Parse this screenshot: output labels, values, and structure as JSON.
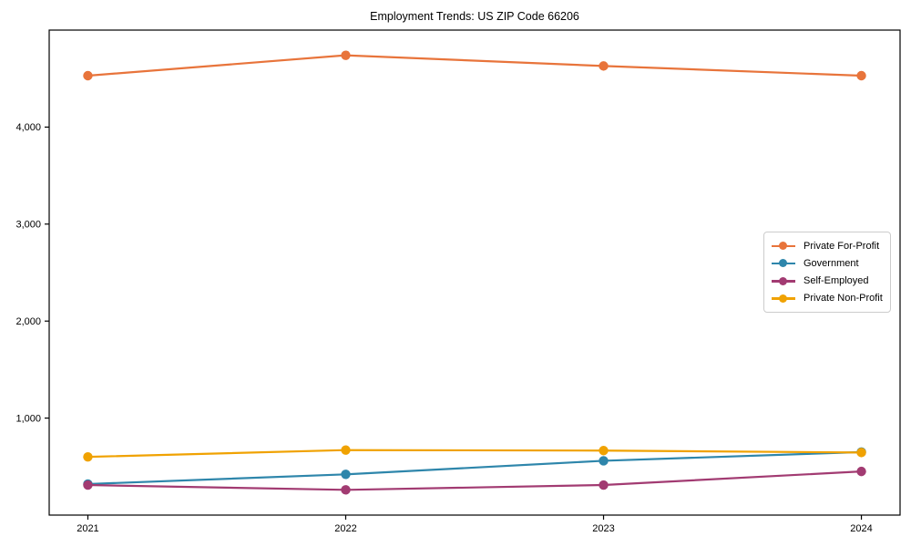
{
  "figure": {
    "title": "Employment Trends: US ZIP Code 66206"
  },
  "chart_data": {
    "type": "line",
    "title": "Employment Trends: US ZIP Code 66206",
    "categories": [
      2021,
      2022,
      2023,
      2024
    ],
    "series": [
      {
        "name": "Private For-Profit",
        "color": "#e8743b",
        "values": [
          4530,
          4740,
          4630,
          4530
        ]
      },
      {
        "name": "Government",
        "color": "#2e86ab",
        "values": [
          320,
          420,
          560,
          650
        ]
      },
      {
        "name": "Self-Employed",
        "color": "#a23b72",
        "values": [
          310,
          260,
          310,
          450
        ]
      },
      {
        "name": "Private Non-Profit",
        "color": "#f0a202",
        "values": [
          600,
          670,
          665,
          645
        ]
      }
    ],
    "xlabel": "",
    "ylabel": "",
    "xlim": [
      2020.85,
      2024.15
    ],
    "ylim": [
      0,
      5000
    ],
    "xticks": {
      "values": [
        2021,
        2022,
        2023,
        2024
      ],
      "labels": [
        "2021",
        "2022",
        "2023",
        "2024"
      ]
    },
    "yticks": {
      "values": [
        1000,
        2000,
        3000,
        4000
      ],
      "labels": [
        "1,000",
        "2,000",
        "3,000",
        "4,000"
      ]
    },
    "grid": false,
    "legend_position": "center-right",
    "marker": "circle",
    "axis_color": "#000000"
  }
}
